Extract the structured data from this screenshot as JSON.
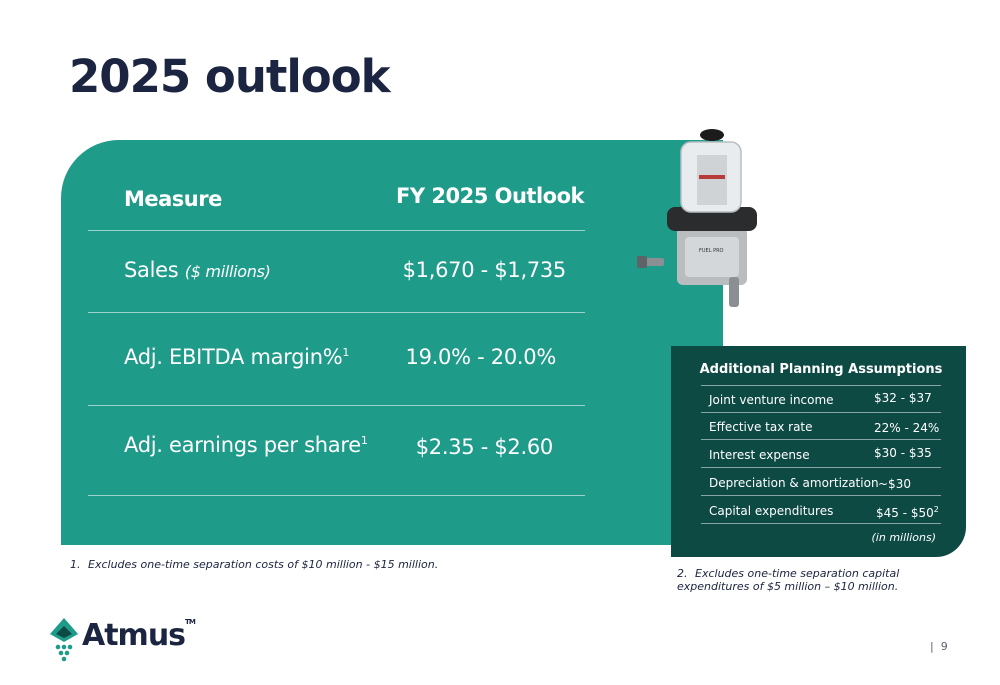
{
  "title": "2025 outlook",
  "table": {
    "header_measure": "Measure",
    "header_outlook": "FY 2025 Outlook",
    "rows": [
      {
        "label": "Sales",
        "unit": "($ millions)",
        "sup": "",
        "value": "$1,670 - $1,735"
      },
      {
        "label": "Adj. EBITDA margin%",
        "unit": "",
        "sup": "1",
        "value": "19.0% - 20.0%"
      },
      {
        "label": "Adj. earnings per share",
        "unit": "",
        "sup": "1",
        "value": "$2.35 - $2.60"
      }
    ]
  },
  "product": {
    "label_top": "FUEL PRO"
  },
  "assumptions": {
    "title": "Additional Planning Assumptions",
    "rows": [
      {
        "label": "Joint venture income",
        "value": "$32 - $37",
        "sup": ""
      },
      {
        "label": "Effective tax rate",
        "value": "22% - 24%",
        "sup": ""
      },
      {
        "label": "Interest expense",
        "value": "$30 - $35",
        "sup": ""
      },
      {
        "label": "Depreciation & amortization",
        "value": "~$30",
        "sup": ""
      },
      {
        "label": "Capital expenditures",
        "value": "$45 - $50",
        "sup": "2"
      }
    ],
    "note": "(in millions)"
  },
  "footnotes": [
    {
      "num": "1.",
      "text": "Excludes one-time separation costs of $10 million - $15 million."
    },
    {
      "num": "2.",
      "text": "Excludes one-time separation capital expenditures of $5 million – $10 million."
    }
  ],
  "logo": {
    "text": "Atmus",
    "tm": "TM"
  },
  "page": {
    "divider": "|",
    "number": "9"
  },
  "colors": {
    "teal": "#1f9b8a",
    "dark_teal": "#0e4a44",
    "navy": "#1b2440"
  }
}
